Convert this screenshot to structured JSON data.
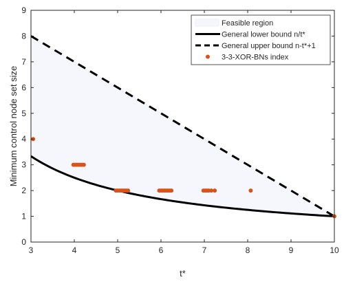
{
  "chart_data": {
    "type": "line",
    "title": "",
    "xlabel": "t*",
    "ylabel": "Minimum control node set size",
    "xlim": [
      3,
      10
    ],
    "ylim": [
      0,
      9
    ],
    "xticks": [
      3,
      4,
      5,
      6,
      7,
      8,
      9,
      10
    ],
    "yticks": [
      0,
      1,
      2,
      3,
      4,
      5,
      6,
      7,
      8,
      9
    ],
    "grid": false,
    "legend_position": "top-right",
    "n": 10,
    "series": [
      {
        "name": "Feasible region",
        "kind": "area",
        "color": "#f5f7fd",
        "edge": "#e4e8f5"
      },
      {
        "name": "General lower bound n/t*",
        "kind": "line",
        "style": "solid",
        "color": "#000000",
        "x": [
          3,
          3.5,
          4,
          4.5,
          5,
          5.5,
          6,
          6.5,
          7,
          7.5,
          8,
          8.5,
          9,
          9.5,
          10
        ],
        "y": [
          3.333,
          2.857,
          2.5,
          2.222,
          2.0,
          1.818,
          1.667,
          1.538,
          1.429,
          1.333,
          1.25,
          1.176,
          1.111,
          1.053,
          1.0
        ]
      },
      {
        "name": "General upper bound n-t*+1",
        "kind": "line",
        "style": "dashed",
        "color": "#000000",
        "x": [
          3,
          10
        ],
        "y": [
          8,
          1
        ]
      },
      {
        "name": "3-3-XOR-BNs index",
        "kind": "scatter",
        "color": "#d95319",
        "x": [
          3.05,
          3.98,
          4.02,
          4.06,
          4.1,
          4.14,
          4.18,
          4.22,
          4.96,
          5.0,
          5.04,
          5.08,
          5.12,
          5.16,
          5.2,
          5.24,
          5.96,
          6.0,
          6.04,
          6.08,
          6.12,
          6.16,
          6.2,
          6.24,
          6.98,
          7.02,
          7.06,
          7.1,
          7.16,
          7.24,
          8.07,
          10.0
        ],
        "y": [
          4,
          3,
          3,
          3,
          3,
          3,
          3,
          3,
          2,
          2,
          2,
          2,
          2,
          2,
          2,
          2,
          2,
          2,
          2,
          2,
          2,
          2,
          2,
          2,
          2,
          2,
          2,
          2,
          2,
          2,
          2,
          1
        ]
      }
    ]
  }
}
